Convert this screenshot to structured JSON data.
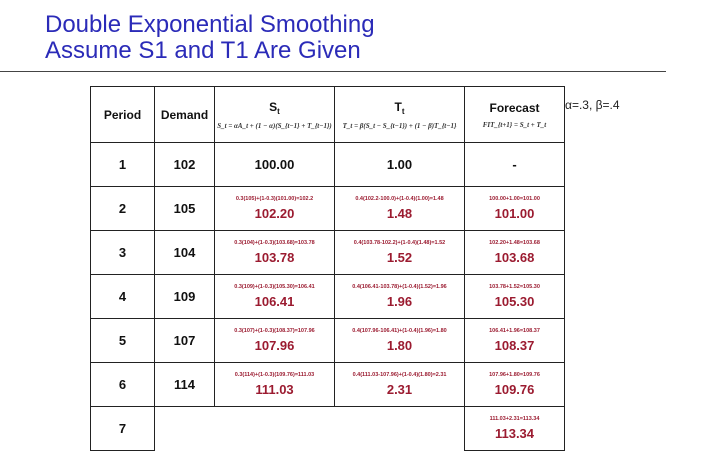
{
  "title_line1": "Double Exponential Smoothing",
  "title_line2": "Assume S1 and T1 Are Given",
  "params": "α=.3, β=.4",
  "headers": {
    "period": "Period",
    "demand": "Demand",
    "s_main": "S",
    "s_sub": "t",
    "s_formula": "S_t = αA_t + (1 − α)(S_{t−1} + T_{t−1})",
    "t_main": "T",
    "t_sub": "t",
    "t_formula": "T_t = β(S_t − S_{t−1}) + (1 − β)T_{t−1}",
    "forecast": "Forecast",
    "forecast_formula": "FIT_{t+1} = S_t + T_t"
  },
  "rows": [
    {
      "period": "1",
      "demand": "102",
      "s_calc": "",
      "s": "100.00",
      "t_calc": "",
      "t": "1.00",
      "f_calc": "",
      "f": "-"
    },
    {
      "period": "2",
      "demand": "105",
      "s_calc": "0.3(105)+(1-0.3)(101.00)=102.2",
      "s": "102.20",
      "t_calc": "0.4(102.2-100.0)+(1-0.4)(1.00)=1.48",
      "t": "1.48",
      "f_calc": "100.00+1.00=101.00",
      "f": "101.00"
    },
    {
      "period": "3",
      "demand": "104",
      "s_calc": "0.3(104)+(1-0.3)(103.68)=103.78",
      "s": "103.78",
      "t_calc": "0.4(103.78-102.2)+(1-0.4)(1.48)=1.52",
      "t": "1.52",
      "f_calc": "102.20+1.48=103.68",
      "f": "103.68"
    },
    {
      "period": "4",
      "demand": "109",
      "s_calc": "0.3(109)+(1-0.3)(105.30)=106.41",
      "s": "106.41",
      "t_calc": "0.4(106.41-103.78)+(1-0.4)(1.52)=1.96",
      "t": "1.96",
      "f_calc": "103.78+1.52=105.30",
      "f": "105.30"
    },
    {
      "period": "5",
      "demand": "107",
      "s_calc": "0.3(107)+(1-0.3)(108.37)=107.96",
      "s": "107.96",
      "t_calc": "0.4(107.96-106.41)+(1-0.4)(1.96)=1.80",
      "t": "1.80",
      "f_calc": "106.41+1.96=108.37",
      "f": "108.37"
    },
    {
      "period": "6",
      "demand": "114",
      "s_calc": "0.3(114)+(1-0.3)(109.76)=111.03",
      "s": "111.03",
      "t_calc": "0.4(111.03-107.96)+(1-0.4)(1.80)=2.31",
      "t": "2.31",
      "f_calc": "107.96+1.80=109.76",
      "f": "109.76"
    },
    {
      "period": "7",
      "demand": "",
      "s_calc": "",
      "s": "",
      "t_calc": "",
      "t": "",
      "f_calc": "111.03+2.31=113.34",
      "f": "113.34"
    }
  ]
}
